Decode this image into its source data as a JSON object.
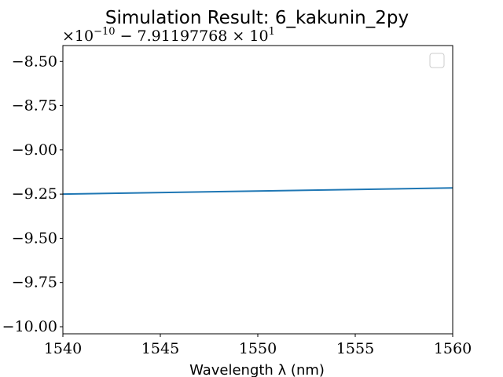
{
  "chart_data": {
    "type": "line",
    "title": "Simulation Result: 6_kakunin_2py",
    "xlabel": "Wavelength λ (nm)",
    "ylabel": "",
    "offset_text": {
      "prefix": "×10",
      "exponent": "−10",
      "middle": " − 7.91197768 × 10",
      "power": "1"
    },
    "xlim": [
      1540,
      1560
    ],
    "ylim": [
      -10.04,
      -8.41
    ],
    "x_ticks": [
      1540,
      1545,
      1550,
      1555,
      1560
    ],
    "x_tick_labels": [
      "1540",
      "1545",
      "1550",
      "1555",
      "1560"
    ],
    "y_ticks": [
      -8.5,
      -8.75,
      -9.0,
      -9.25,
      -9.5,
      -9.75,
      -10.0
    ],
    "y_tick_labels": [
      "−8.50",
      "−8.75",
      "−9.00",
      "−9.25",
      "−9.50",
      "−9.75",
      "−10.00"
    ],
    "grid": false,
    "legend": "top-right",
    "series": [
      {
        "color": "#1f77b4",
        "x": [
          1540,
          1560
        ],
        "y": [
          -9.25,
          -9.215
        ]
      }
    ]
  }
}
